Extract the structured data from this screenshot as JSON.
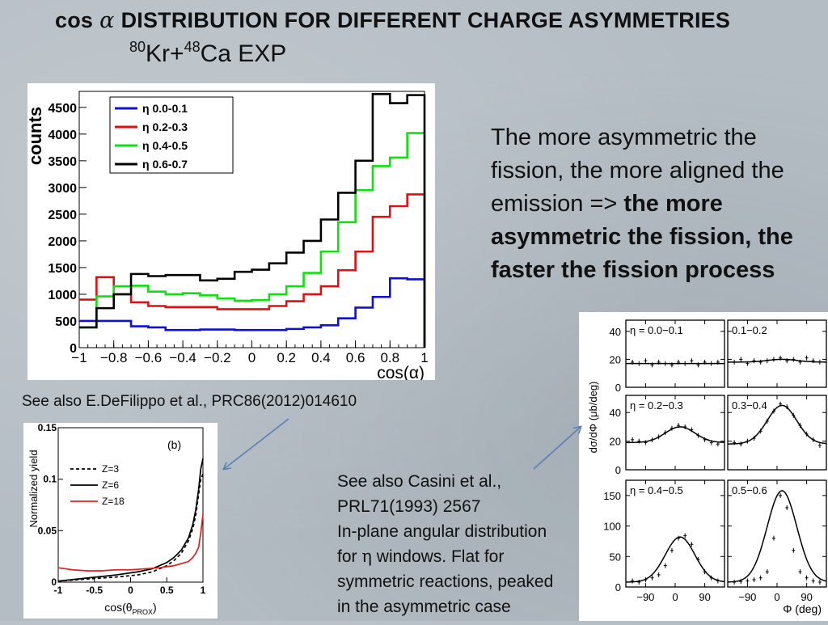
{
  "slide": {
    "title_prefix": "cos",
    "title_greek": "α",
    "title_rest": "DISTRIBUTION FOR DIFFERENT CHARGE ASYMMETRIES",
    "sub_a": "80",
    "sub_b": "Kr+",
    "sub_c": "48",
    "sub_d": "Ca EXP",
    "note_plain": "The more asymmetric the fission, the more aligned the emission => ",
    "note_bold": "the more asymmetric the fission, the faster the fission process",
    "ref1": "See also E.DeFilippo et al., PRC86(2012)014610",
    "ref2_line1": "See also Casini et al.,",
    "ref2_line2": "PRL71(1993) 2567",
    "ref2_line3": "In-plane angular distribution",
    "ref2_line4a": "for ",
    "ref2_greek": "η",
    "ref2_line4b": " windows. Flat for",
    "ref2_line5": "symmetric reactions, peaked",
    "ref2_line6": "in the asymmetric case",
    "colors": {
      "background": "#b4bdc4",
      "arrow": "#5a7fb6"
    }
  },
  "chart_data": [
    {
      "type": "line",
      "ylabel": "counts",
      "xlabel": "cos(α)",
      "xlim": [
        -1,
        1
      ],
      "ylim": [
        0,
        4800
      ],
      "x_ticks": [
        -1,
        -0.8,
        -0.6,
        -0.4,
        -0.2,
        0,
        0.2,
        0.4,
        0.6,
        0.8,
        1
      ],
      "x_tick_labels": [
        "−1",
        "−0.8",
        "−0.6",
        "−0.4",
        "−0.2",
        "0",
        "0.2",
        "0.4",
        "0.6",
        "0.8",
        "1"
      ],
      "y_ticks": [
        0,
        500,
        1000,
        1500,
        2000,
        2500,
        3000,
        3500,
        4000,
        4500
      ],
      "bin_edges": [
        -1,
        -0.9,
        -0.8,
        -0.7,
        -0.6,
        -0.5,
        -0.4,
        -0.3,
        -0.2,
        -0.1,
        0,
        0.1,
        0.2,
        0.3,
        0.4,
        0.5,
        0.6,
        0.7,
        0.8,
        0.9,
        1
      ],
      "legend_position": "top-left",
      "series": [
        {
          "name": "η 0.0-0.1",
          "color": "#1010d0",
          "values": [
            500,
            500,
            500,
            400,
            380,
            330,
            330,
            340,
            340,
            330,
            330,
            330,
            350,
            380,
            420,
            550,
            750,
            950,
            1300,
            1280
          ]
        },
        {
          "name": "η 0.2-0.3",
          "color": "#e01010",
          "values": [
            900,
            1320,
            1000,
            850,
            780,
            760,
            760,
            760,
            720,
            720,
            720,
            780,
            870,
            1000,
            1150,
            1450,
            1800,
            2450,
            2650,
            2870
          ]
        },
        {
          "name": "η 0.4-0.5",
          "color": "#10e010",
          "values": [
            380,
            960,
            1150,
            1160,
            1050,
            1000,
            1020,
            980,
            920,
            880,
            890,
            1000,
            1150,
            1400,
            1800,
            2350,
            2950,
            3400,
            3560,
            4020
          ]
        },
        {
          "name": "η 0.6-0.7",
          "color": "#000000",
          "values": [
            380,
            740,
            1000,
            1380,
            1340,
            1360,
            1360,
            1260,
            1290,
            1420,
            1460,
            1580,
            1780,
            2000,
            2400,
            2900,
            3500,
            4750,
            4580,
            4730
          ]
        }
      ]
    },
    {
      "type": "line",
      "panel_label": "(b)",
      "ylabel": "Normalized yield",
      "xlabel_main": "cos(θ",
      "xlabel_sub": "PROX",
      "xlabel_end": ")",
      "xlim": [
        -1,
        1
      ],
      "ylim": [
        0,
        0.15
      ],
      "x_ticks": [
        -1,
        -0.5,
        0,
        0.5,
        1
      ],
      "x_tick_labels": [
        "-1",
        "-0.5",
        "0",
        "0.5",
        "1"
      ],
      "y_ticks": [
        0,
        0.05,
        0.1,
        0.15
      ],
      "y_tick_labels": [
        "0",
        "0.05",
        "0.1",
        "0.15"
      ],
      "legend_position": "top-left",
      "series": [
        {
          "name": "Z=3",
          "color": "#000000",
          "dashed": true,
          "x": [
            -1,
            -0.6,
            -0.2,
            0.1,
            0.3,
            0.5,
            0.6,
            0.7,
            0.8,
            0.86,
            0.9,
            0.94,
            0.97,
            1.0
          ],
          "y": [
            0.001,
            0.003,
            0.005,
            0.007,
            0.01,
            0.016,
            0.021,
            0.028,
            0.04,
            0.052,
            0.065,
            0.085,
            0.1,
            0.105
          ]
        },
        {
          "name": "Z=6",
          "color": "#000000",
          "x": [
            -1,
            -0.6,
            -0.2,
            0.1,
            0.3,
            0.5,
            0.6,
            0.7,
            0.8,
            0.86,
            0.9,
            0.94,
            0.97,
            1.0
          ],
          "y": [
            0.001,
            0.004,
            0.007,
            0.01,
            0.013,
            0.019,
            0.024,
            0.031,
            0.043,
            0.056,
            0.07,
            0.09,
            0.11,
            0.12
          ]
        },
        {
          "name": "Z=18",
          "color": "#e02020",
          "x": [
            -1,
            -0.8,
            -0.6,
            -0.4,
            -0.2,
            0,
            0.2,
            0.4,
            0.5,
            0.6,
            0.7,
            0.8,
            0.86,
            0.9,
            0.94,
            0.97,
            1.0
          ],
          "y": [
            0.014,
            0.012,
            0.011,
            0.011,
            0.012,
            0.012,
            0.013,
            0.014,
            0.015,
            0.016,
            0.018,
            0.02,
            0.024,
            0.028,
            0.034,
            0.048,
            0.066
          ]
        }
      ]
    },
    {
      "type": "scatter",
      "ylabel": "dσ/dΦ  (μb/deg)",
      "xlabel": "Φ (deg)",
      "x_ticks": [
        -90,
        0,
        90
      ],
      "x_tick_labels": [
        "−90",
        "0",
        "90"
      ],
      "rows": [
        {
          "ylim": [
            0,
            48
          ],
          "y_ticks": [
            0,
            20,
            40
          ],
          "panels": [
            {
              "label": "η = 0.0−0.1",
              "x": [
                -130,
                -110,
                -90,
                -70,
                -50,
                -30,
                -10,
                10,
                30,
                50,
                70,
                90,
                110,
                130
              ],
              "y": [
                18,
                17,
                19,
                16,
                18,
                17,
                16,
                18,
                17,
                19,
                16,
                18,
                17,
                18
              ],
              "fit_peak": 17,
              "fit_base": 17
            },
            {
              "label": "0.1−0.2",
              "x": [
                -130,
                -110,
                -90,
                -70,
                -50,
                -30,
                -10,
                10,
                30,
                50,
                70,
                90,
                110,
                130
              ],
              "y": [
                18,
                20,
                17,
                19,
                18,
                19,
                20,
                21,
                19,
                20,
                18,
                21,
                19,
                18
              ],
              "fit_peak": 20,
              "fit_base": 18
            }
          ]
        },
        {
          "ylim": [
            0,
            52
          ],
          "y_ticks": [
            0,
            20,
            40
          ],
          "panels": [
            {
              "label": "η = 0.2−0.3",
              "x": [
                -130,
                -110,
                -90,
                -70,
                -50,
                -30,
                -10,
                10,
                30,
                50,
                70,
                90,
                110,
                130
              ],
              "y": [
                21,
                20,
                19,
                21,
                23,
                26,
                29,
                31,
                30,
                28,
                24,
                21,
                19,
                18
              ],
              "fit_peak": 30,
              "fit_base": 19
            },
            {
              "label": "0.3−0.4",
              "x": [
                -130,
                -110,
                -90,
                -70,
                -50,
                -30,
                -10,
                10,
                30,
                50,
                70,
                90,
                110,
                130
              ],
              "y": [
                19,
                18,
                20,
                22,
                27,
                34,
                41,
                46,
                44,
                38,
                31,
                25,
                21,
                17
              ],
              "fit_peak": 45,
              "fit_base": 18
            }
          ]
        },
        {
          "ylim": [
            0,
            175
          ],
          "y_ticks": [
            0,
            50,
            100,
            150
          ],
          "panels": [
            {
              "label": "η = 0.4−0.5",
              "x": [
                -130,
                -110,
                -90,
                -70,
                -50,
                -30,
                -10,
                10,
                30,
                50,
                70,
                90,
                110,
                130
              ],
              "y": [
                10,
                8,
                12,
                15,
                20,
                35,
                60,
                80,
                84,
                70,
                45,
                25,
                15,
                10
              ],
              "fit_peak": 82,
              "fit_base": 8
            },
            {
              "label": "0.5−0.6",
              "x": [
                -130,
                -110,
                -90,
                -70,
                -50,
                -30,
                -10,
                10,
                30,
                50,
                70,
                90,
                110,
                130
              ],
              "y": [
                8,
                9,
                10,
                12,
                15,
                25,
                80,
                150,
                130,
                60,
                25,
                15,
                10,
                8
              ],
              "fit_peak": 158,
              "fit_base": 8
            }
          ]
        }
      ]
    }
  ]
}
